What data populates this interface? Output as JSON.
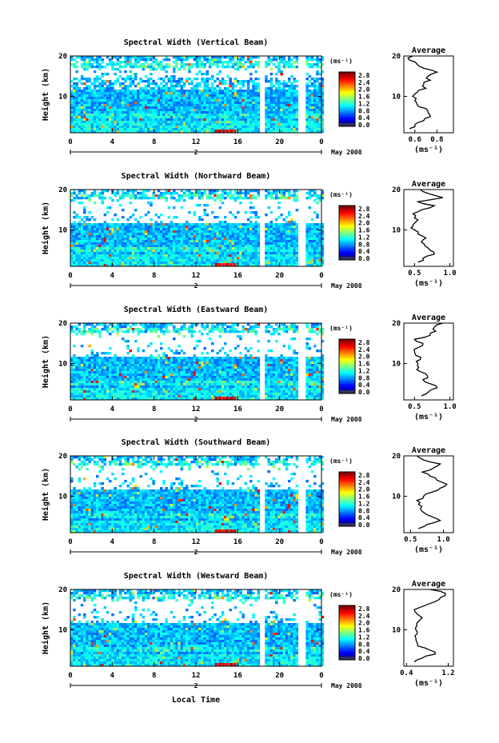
{
  "figure": {
    "x_axis_label": "Local Time",
    "date_label": "May 2008",
    "day_label": "2"
  },
  "chart_data": [
    {
      "type": "heatmap",
      "title": "Spectral Width (Vertical Beam)",
      "ylabel": "Height (km)",
      "x_ticks": [
        "0",
        "4",
        "8",
        "12",
        "16",
        "20",
        "0"
      ],
      "y_ticks": [
        "20",
        "10"
      ],
      "xlim": [
        0,
        24
      ],
      "ylim": [
        1,
        20
      ],
      "colorbar": {
        "unit": "(ms⁻¹)",
        "ticks": [
          "2.8",
          "2.4",
          "2.0",
          "1.6",
          "1.2",
          "0.8",
          "0.4",
          "0.0"
        ],
        "range": [
          0,
          2.8
        ]
      },
      "average": {
        "title": "Average",
        "xlabel": "(ms⁻¹)",
        "x_ticks": [
          "0.6",
          "0.8"
        ],
        "xlim": [
          0.5,
          0.95
        ],
        "y_ticks": [
          "20",
          "10"
        ],
        "heights": [
          2,
          3,
          4,
          5,
          6,
          7,
          8,
          9,
          10,
          11,
          12,
          13,
          14,
          15,
          16,
          17,
          18,
          19,
          20
        ],
        "values": [
          0.55,
          0.6,
          0.68,
          0.74,
          0.72,
          0.7,
          0.62,
          0.6,
          0.58,
          0.62,
          0.7,
          0.68,
          0.74,
          0.72,
          0.8,
          0.68,
          0.62,
          0.55,
          0.58
        ]
      }
    },
    {
      "type": "heatmap",
      "title": "Spectral Width (Northward Beam)",
      "ylabel": "Height (km)",
      "x_ticks": [
        "0",
        "4",
        "8",
        "12",
        "16",
        "20",
        "0"
      ],
      "y_ticks": [
        "20",
        "10"
      ],
      "xlim": [
        0,
        24
      ],
      "ylim": [
        1,
        20
      ],
      "colorbar": {
        "unit": "(ms⁻¹)",
        "ticks": [
          "2.8",
          "2.4",
          "2.0",
          "1.6",
          "1.2",
          "0.8",
          "0.4",
          "0.0"
        ],
        "range": [
          0,
          2.8
        ]
      },
      "average": {
        "title": "Average",
        "xlabel": "(ms⁻¹)",
        "x_ticks": [
          "0.5",
          "1.0"
        ],
        "xlim": [
          0.35,
          1.05
        ],
        "y_ticks": [
          "20",
          "10"
        ],
        "heights": [
          2,
          3,
          4,
          5,
          6,
          7,
          8,
          9,
          10,
          11,
          12,
          13,
          14,
          15,
          16,
          17,
          18,
          19,
          20
        ],
        "values": [
          0.55,
          0.62,
          0.78,
          0.72,
          0.65,
          0.6,
          0.66,
          0.55,
          0.5,
          0.48,
          0.52,
          0.5,
          0.48,
          0.6,
          0.78,
          0.55,
          0.9,
          0.7,
          0.58
        ]
      }
    },
    {
      "type": "heatmap",
      "title": "Spectral Width (Eastward Beam)",
      "ylabel": "Height (km)",
      "x_ticks": [
        "0",
        "4",
        "8",
        "12",
        "16",
        "20",
        "0"
      ],
      "y_ticks": [
        "20",
        "10"
      ],
      "xlim": [
        0,
        24
      ],
      "ylim": [
        1,
        20
      ],
      "colorbar": {
        "unit": "(ms⁻¹)",
        "ticks": [
          "2.8",
          "2.4",
          "2.0",
          "1.6",
          "1.2",
          "0.8",
          "0.4",
          "0.0"
        ],
        "range": [
          0,
          2.8
        ]
      },
      "average": {
        "title": "Average",
        "xlabel": "(ms⁻¹)",
        "x_ticks": [
          "0.5",
          "1.0"
        ],
        "xlim": [
          0.35,
          1.05
        ],
        "y_ticks": [
          "20",
          "10"
        ],
        "heights": [
          2,
          3,
          4,
          5,
          6,
          7,
          8,
          9,
          10,
          11,
          12,
          13,
          14,
          15,
          16,
          17,
          18,
          19,
          20
        ],
        "values": [
          0.6,
          0.7,
          0.82,
          0.72,
          0.62,
          0.68,
          0.58,
          0.56,
          0.55,
          0.58,
          0.52,
          0.5,
          0.56,
          0.62,
          0.5,
          0.72,
          0.8,
          0.78,
          0.9
        ]
      }
    },
    {
      "type": "heatmap",
      "title": "Spectral Width (Southward Beam)",
      "ylabel": "Height (km)",
      "x_ticks": [
        "0",
        "4",
        "8",
        "12",
        "16",
        "20",
        "0"
      ],
      "y_ticks": [
        "20",
        "10"
      ],
      "xlim": [
        0,
        24
      ],
      "ylim": [
        1,
        20
      ],
      "colorbar": {
        "unit": "(ms⁻¹)",
        "ticks": [
          "2.8",
          "2.4",
          "2.0",
          "1.6",
          "1.2",
          "0.8",
          "0.4",
          "0.0"
        ],
        "range": [
          0,
          2.8
        ]
      },
      "average": {
        "title": "Average",
        "xlabel": "(ms⁻¹)",
        "x_ticks": [
          "0.5",
          "1.0"
        ],
        "xlim": [
          0.4,
          1.15
        ],
        "y_ticks": [
          "20",
          "10"
        ],
        "heights": [
          2,
          3,
          4,
          5,
          6,
          7,
          8,
          9,
          10,
          11,
          12,
          13,
          14,
          15,
          16,
          17,
          18,
          19,
          20
        ],
        "values": [
          0.62,
          0.75,
          0.95,
          0.82,
          0.7,
          0.65,
          0.62,
          0.6,
          0.7,
          0.82,
          0.95,
          1.05,
          0.9,
          0.8,
          0.68,
          0.85,
          0.95,
          0.7,
          0.6
        ]
      }
    },
    {
      "type": "heatmap",
      "title": "Spectral Width (Westward Beam)",
      "ylabel": "Height (km)",
      "x_ticks": [
        "0",
        "4",
        "8",
        "12",
        "16",
        "20",
        "0"
      ],
      "y_ticks": [
        "20",
        "10"
      ],
      "xlim": [
        0,
        24
      ],
      "ylim": [
        1,
        20
      ],
      "colorbar": {
        "unit": "(ms⁻¹)",
        "ticks": [
          "2.8",
          "2.4",
          "2.0",
          "1.6",
          "1.2",
          "0.8",
          "0.4",
          "0.0"
        ],
        "range": [
          0,
          2.8
        ]
      },
      "average": {
        "title": "Average",
        "xlabel": "(ms⁻¹)",
        "x_ticks": [
          "0.4",
          "1.2"
        ],
        "xlim": [
          0.35,
          1.3
        ],
        "y_ticks": [
          "20",
          "10"
        ],
        "heights": [
          2,
          3,
          4,
          5,
          6,
          7,
          8,
          9,
          10,
          11,
          12,
          13,
          14,
          15,
          16,
          17,
          18,
          19,
          20
        ],
        "values": [
          0.55,
          0.7,
          0.95,
          0.85,
          0.62,
          0.6,
          0.58,
          0.6,
          0.58,
          0.6,
          0.62,
          0.7,
          0.6,
          0.55,
          0.75,
          0.95,
          1.05,
          1.15,
          0.85
        ]
      }
    }
  ]
}
